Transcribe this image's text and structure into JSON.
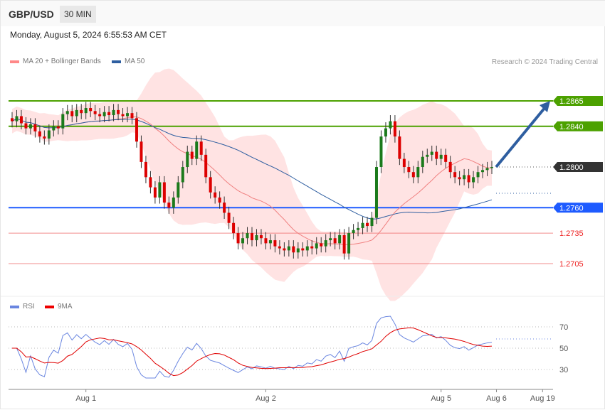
{
  "header": {
    "symbol": "GBP/USD",
    "timeframe": "30 MIN",
    "datetime": "Monday, August 5, 2024 6:55:53 AM CET"
  },
  "legend": {
    "ma20": "MA 20 + Bollinger Bands",
    "ma50": "MA 50",
    "rsi": "RSI",
    "rsi_ma": "9MA",
    "copyright": "Research © 2024 Trading Central"
  },
  "colors": {
    "resistance": "#4ca100",
    "support": "#1e5bff",
    "support2": "#f07070",
    "current": "#333333",
    "ma20": "#f08080",
    "ma50": "#2e5ea0",
    "rsi": "#6a86e0",
    "rsi_ma": "#e00000"
  },
  "chart_data": {
    "type": "candlestick",
    "closes": [
      1.2845,
      1.285,
      1.2843,
      1.2838,
      1.2842,
      1.2835,
      1.283,
      1.2828,
      1.2836,
      1.284,
      1.2838,
      1.2852,
      1.2855,
      1.285,
      1.2856,
      1.2853,
      1.2858,
      1.2855,
      1.2852,
      1.285,
      1.2854,
      1.2851,
      1.2856,
      1.2852,
      1.285,
      1.2853,
      1.2848,
      1.2825,
      1.2805,
      1.279,
      1.278,
      1.277,
      1.2785,
      1.2765,
      1.276,
      1.277,
      1.2785,
      1.28,
      1.2815,
      1.2808,
      1.2825,
      1.2812,
      1.279,
      1.2775,
      1.277,
      1.2765,
      1.2755,
      1.2745,
      1.2735,
      1.2725,
      1.273,
      1.2735,
      1.2728,
      1.2733,
      1.273,
      1.2725,
      1.2728,
      1.2722,
      1.272,
      1.2718,
      1.2722,
      1.2716,
      1.272,
      1.2718,
      1.2722,
      1.272,
      1.2725,
      1.2722,
      1.2728,
      1.273,
      1.2725,
      1.2733,
      1.2715,
      1.2735,
      1.2738,
      1.274,
      1.2745,
      1.2742,
      1.275,
      1.28,
      1.283,
      1.2838,
      1.2845,
      1.283,
      1.2808,
      1.28,
      1.2795,
      1.279,
      1.28,
      1.281,
      1.2812,
      1.2815,
      1.2808,
      1.2812,
      1.2805,
      1.2795,
      1.279,
      1.2788,
      1.2792,
      1.2785,
      1.279,
      1.2795,
      1.2797,
      1.2799,
      1.28
    ],
    "levels": [
      {
        "value": 1.2865,
        "label": "1.2865",
        "kind": "resistance"
      },
      {
        "value": 1.284,
        "label": "1.2840",
        "kind": "resistance"
      },
      {
        "value": 1.28,
        "label": "1.2800",
        "kind": "current"
      },
      {
        "value": 1.276,
        "label": "1.2760",
        "kind": "support"
      },
      {
        "value": 1.2735,
        "label": "1.2735",
        "kind": "support2"
      },
      {
        "value": 1.2705,
        "label": "1.2705",
        "kind": "support2"
      }
    ],
    "price_range": [
      1.2705,
      1.2865
    ],
    "x_labels": [
      {
        "label": "Aug 1",
        "index": 16
      },
      {
        "label": "Aug 2",
        "index": 55
      },
      {
        "label": "Aug 5",
        "index": 93
      },
      {
        "label": "Aug 6",
        "index": 105
      },
      {
        "label": "Aug 19",
        "index": 115
      }
    ],
    "rsi_ticks": [
      {
        "value": 70,
        "label": "70"
      },
      {
        "value": 50,
        "label": "50"
      },
      {
        "value": 30,
        "label": "30"
      }
    ],
    "forecast_target": 1.2865
  }
}
